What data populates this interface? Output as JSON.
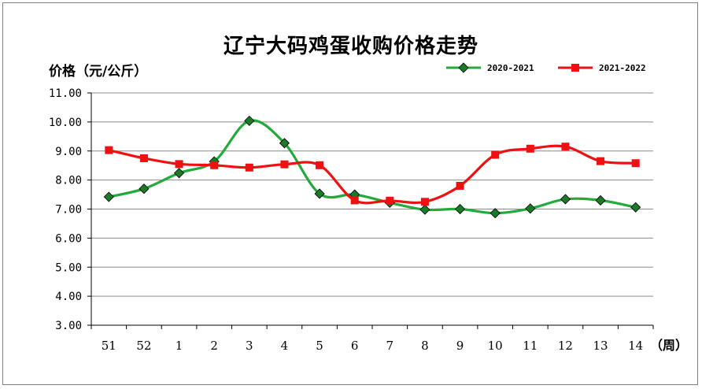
{
  "chart_data": {
    "type": "line",
    "title": "辽宁大码鸡蛋收购价格走势",
    "ylabel": "价格（元/公斤）",
    "xlabel": "（周）",
    "categories": [
      "51",
      "52",
      "1",
      "2",
      "3",
      "4",
      "5",
      "6",
      "7",
      "8",
      "9",
      "10",
      "11",
      "12",
      "13",
      "14"
    ],
    "ylim": [
      3.0,
      11.0
    ],
    "yticks": [
      "3.00",
      "4.00",
      "5.00",
      "6.00",
      "7.00",
      "8.00",
      "9.00",
      "10.00",
      "11.00"
    ],
    "grid": true,
    "legend_position": "top-right",
    "series": [
      {
        "name": "2020-2021",
        "color": "#22aa3a",
        "marker": "diamond",
        "values": [
          7.42,
          7.7,
          8.24,
          8.64,
          10.04,
          9.27,
          7.53,
          7.5,
          7.22,
          6.98,
          7.0,
          6.86,
          7.02,
          7.34,
          7.3,
          7.06
        ]
      },
      {
        "name": "2021-2022",
        "color": "#ee1111",
        "marker": "square",
        "values": [
          9.03,
          8.75,
          8.55,
          8.51,
          8.43,
          8.54,
          8.51,
          7.3,
          7.29,
          7.25,
          7.8,
          8.87,
          9.08,
          9.15,
          8.65,
          8.58
        ]
      }
    ]
  }
}
